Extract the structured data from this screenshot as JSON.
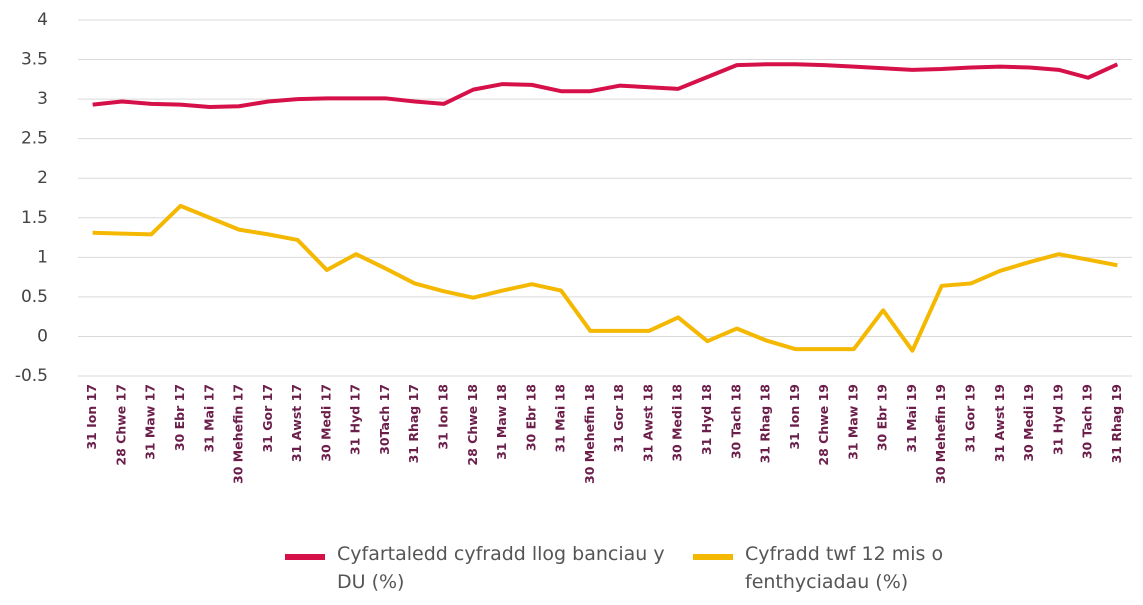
{
  "chart_data": {
    "type": "line",
    "categories": [
      "31 Ion 17",
      "28 Chwe 17",
      "31 Maw 17",
      "30 Ebr 17",
      "31 Mai 17",
      "30 Mehefin 17",
      "31 Gor 17",
      "31 Awst 17",
      "30 Medi 17",
      "31 Hyd 17",
      "30Tach 17",
      "31 Rhag 17",
      "31 Ion 18",
      "28 Chwe 18",
      "31 Maw 18",
      "30 Ebr 18",
      "31 Mai 18",
      "30 Mehefin 18",
      "31 Gor 18",
      "31 Awst 18",
      "30 Medi 18",
      "31 Hyd 18",
      "30 Tach 18",
      "31 Rhag 18",
      "31 Ion 19",
      "28 Chwe 19",
      "31 Maw 19",
      "30 Ebr 19",
      "31 Mai 19",
      "30 Mehefin 19",
      "31 Gor 19",
      "31 Awst 19",
      "30 Medi 19",
      "31 Hyd 19",
      "30 Tach 19",
      "31 Rhag 19"
    ],
    "series": [
      {
        "name": "Cyfartaledd cyfradd llog banciau y DU (%)",
        "color": "#d6114a",
        "values": [
          2.93,
          2.97,
          2.94,
          2.93,
          2.9,
          2.91,
          2.97,
          3.0,
          3.01,
          3.01,
          3.01,
          2.97,
          2.94,
          3.12,
          3.19,
          3.18,
          3.1,
          3.1,
          3.17,
          3.15,
          3.13,
          3.28,
          3.43,
          3.44,
          3.44,
          3.43,
          3.41,
          3.39,
          3.37,
          3.38,
          3.4,
          3.41,
          3.4,
          3.37,
          3.27,
          3.44
        ]
      },
      {
        "name": "Cyfradd twf 12 mis o fenthyciadau (%)",
        "color": "#f5b800",
        "values": [
          1.31,
          1.3,
          1.29,
          1.65,
          1.5,
          1.35,
          1.29,
          1.22,
          0.84,
          1.04,
          0.86,
          0.67,
          0.57,
          0.49,
          0.58,
          0.66,
          0.58,
          0.07,
          0.07,
          0.07,
          0.24,
          -0.06,
          0.1,
          -0.05,
          -0.16,
          -0.16,
          -0.16,
          0.33,
          -0.18,
          0.64,
          0.67,
          0.83,
          0.94,
          1.04,
          0.97,
          0.9
        ]
      }
    ],
    "ylim": [
      -0.5,
      4
    ],
    "yticks": [
      -0.5,
      0,
      0.5,
      1,
      1.5,
      2,
      2.5,
      3,
      3.5,
      4
    ],
    "grid": true
  }
}
